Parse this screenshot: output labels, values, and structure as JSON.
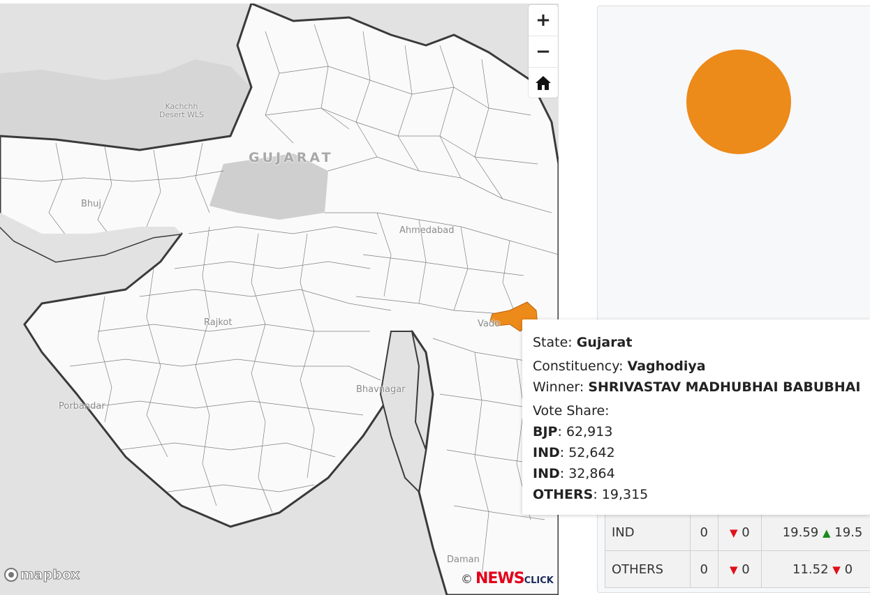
{
  "map": {
    "labels": {
      "state": "GUJARAT",
      "kachchh": "Kachchh\nDesert WLS",
      "bhuj": "Bhuj",
      "ahmedabad": "Ahmedabad",
      "rajkot": "Rajkot",
      "vadodara": "Vado",
      "bhavnagar": "Bhavnagar",
      "porbandar": "Porbandar",
      "daman": "Daman"
    },
    "highlight_color": "#ec8a1a",
    "controls": {
      "zoom_in": "+",
      "zoom_out": "−",
      "home": "home-icon"
    },
    "attribution": {
      "mapbox": "mapbox",
      "copyright": "©",
      "brand_news": "NEWS",
      "brand_click": "CLICK"
    }
  },
  "pie": {
    "color": "#ec8a1a",
    "share": 1.0
  },
  "tooltip": {
    "state_label": "State: ",
    "state": "Gujarat",
    "constituency_label": "Constituency: ",
    "constituency": "Vaghodiya",
    "winner_label": "Winner: ",
    "winner": "SHRIVASTAV MADHUBHAI BABUBHAI",
    "vote_share_label": "Vote Share:",
    "votes": [
      {
        "party": "BJP",
        "value": "62,913"
      },
      {
        "party": "IND",
        "value": "52,642"
      },
      {
        "party": "IND",
        "value": "32,864"
      },
      {
        "party": "OTHERS",
        "value": "19,315"
      }
    ]
  },
  "table": {
    "rows": [
      {
        "party": "IND",
        "seats": "0",
        "seat_change_dir": "down",
        "seat_change": "0",
        "vote_pct": "19.59",
        "vote_change_dir": "up",
        "vote_change": "19.5"
      },
      {
        "party": "OTHERS",
        "seats": "0",
        "seat_change_dir": "down",
        "seat_change": "0",
        "vote_pct": "11.52",
        "vote_change_dir": "down",
        "vote_change": "0"
      }
    ]
  }
}
